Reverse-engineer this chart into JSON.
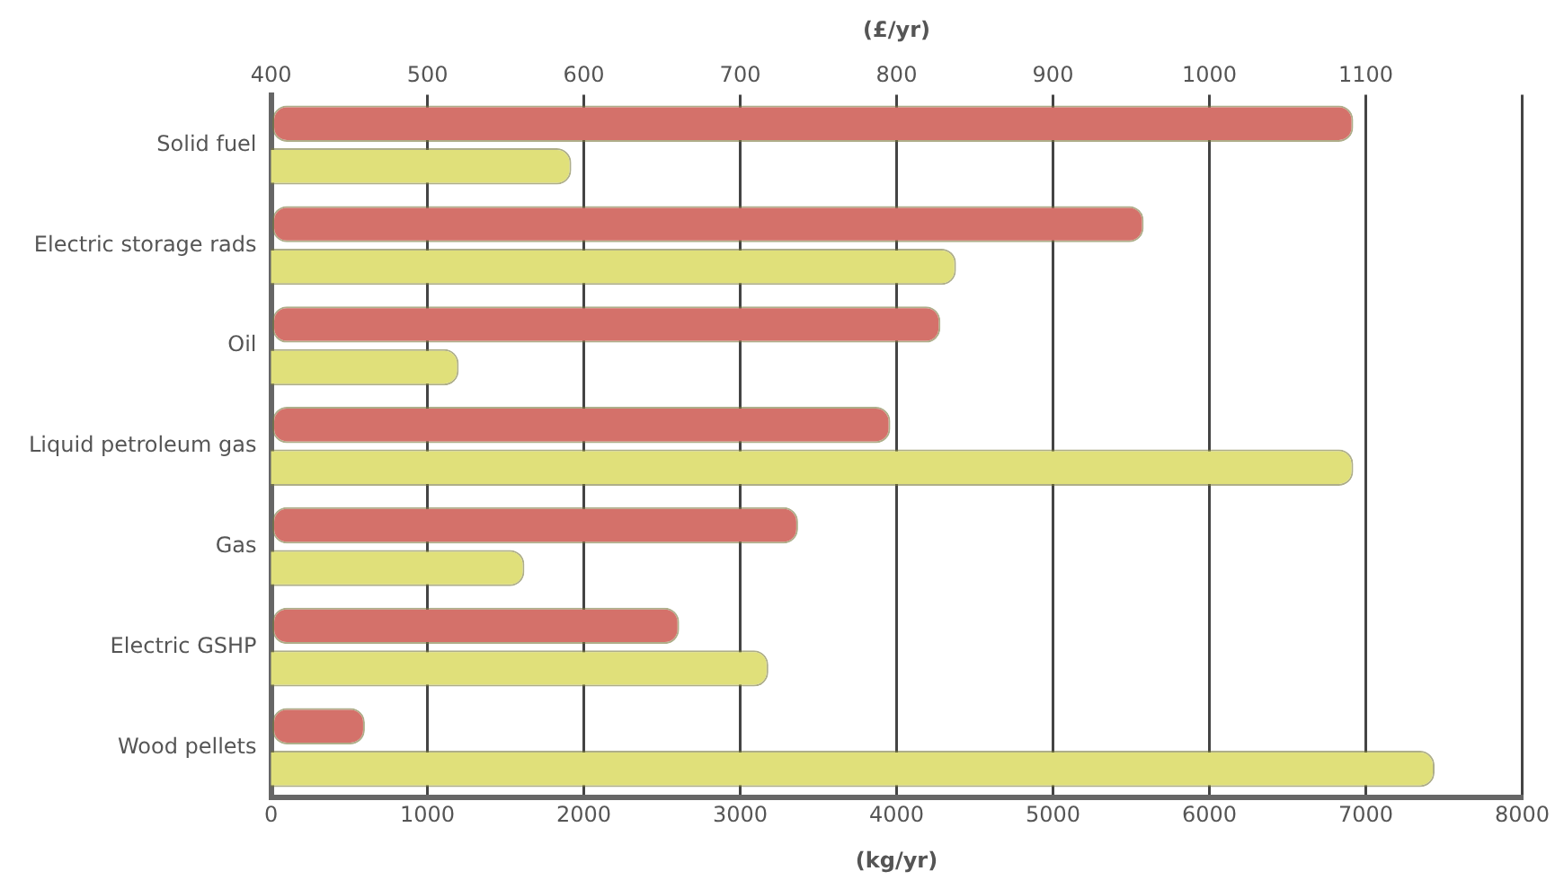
{
  "chart_data": {
    "type": "bar",
    "orientation": "horizontal",
    "categories": [
      "Solid fuel",
      "Electric storage rads",
      "Oil",
      "Liquid petroleum gas",
      "Gas",
      "Electric GSHP",
      "Wood pellets"
    ],
    "series": [
      {
        "color": "#d4716a",
        "values": [
          6920,
          5580,
          4280,
          3960,
          3370,
          2610,
          600
        ]
      },
      {
        "color": "#e0e07a",
        "axis": "x2",
        "values": [
          592,
          838,
          520,
          1092,
          562,
          718,
          1144
        ]
      }
    ],
    "xlabel": "(kg/yr)",
    "xlim": [
      0,
      8000
    ],
    "xticks": [
      0,
      1000,
      2000,
      3000,
      4000,
      5000,
      6000,
      7000,
      8000
    ],
    "x2label": "(£/yr)",
    "x2lim": [
      400,
      1200
    ],
    "x2ticks": [
      400,
      500,
      600,
      700,
      800,
      900,
      1000,
      1100,
      {
        "value": 1200,
        "label": null
      }
    ],
    "grid": "x",
    "legend": false
  }
}
